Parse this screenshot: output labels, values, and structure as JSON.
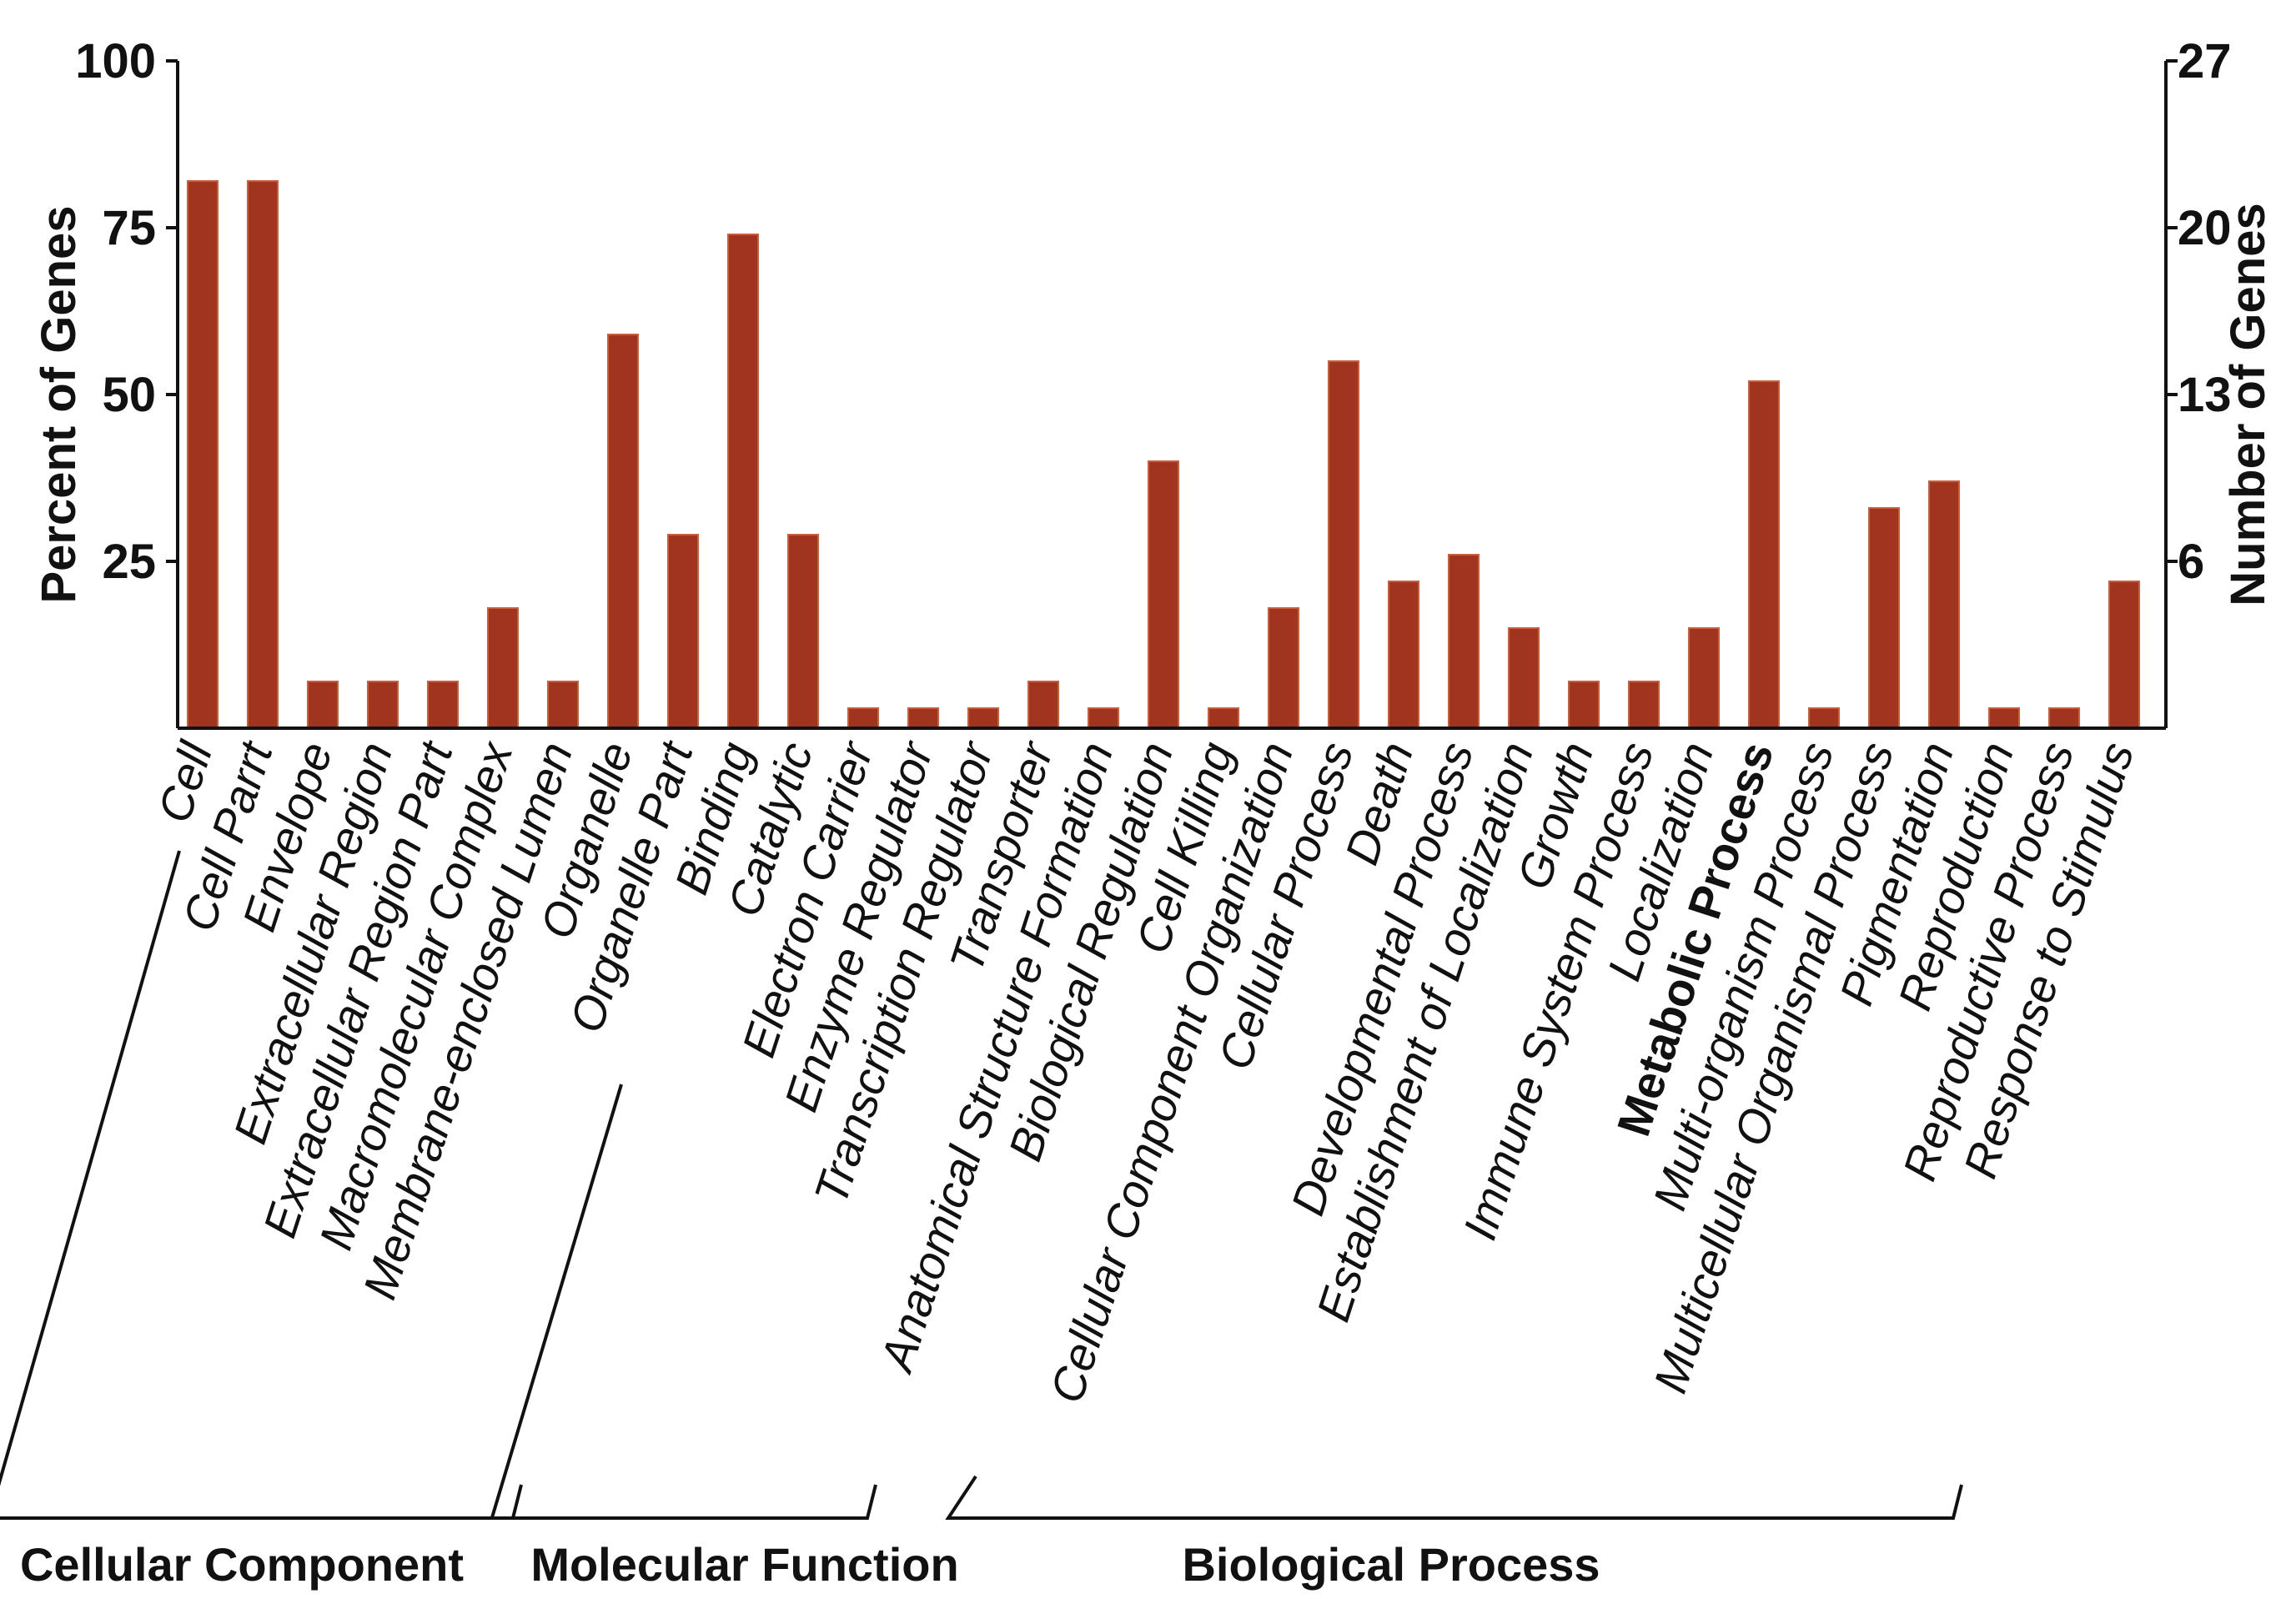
{
  "chart_data": {
    "type": "bar",
    "title": "",
    "ylabel": "Percent of Genes",
    "y2label": "Number of Genes",
    "ylim": [
      0,
      100
    ],
    "yticks": [
      "25",
      "50",
      "75",
      "100"
    ],
    "y2ticks": [
      "6",
      "13",
      "20",
      "27"
    ],
    "bar_color": "#a0341f",
    "categories": [
      "Cell",
      "Cell Parrt",
      "Envelope",
      "Extracellular Region",
      "Extracellular Region Part",
      "Macromolecular Complex",
      "Membrane-enclosed Lumen",
      "Organelle",
      "Organelle Part",
      "Binding",
      "Catalytic",
      "Electron Carrier",
      "Enzyme Regulator",
      "Transcription Regulator",
      "Transporter",
      "Anatomical Structure Formation",
      "Biological Regulation",
      "Cell Killing",
      "Cellular Component Organization",
      "Cellular Process",
      "Death",
      "Developmental Process",
      "Establishment of Localization",
      "Growth",
      "Immune System Process",
      "Localization",
      "Metabolic Process",
      "Multi-organism Process",
      "Multicellular Organismal Process",
      "Pigmentation",
      "Reproduction",
      "Reproductive Process",
      "Response to Stimulus"
    ],
    "values": [
      82,
      82,
      7,
      7,
      7,
      18,
      7,
      59,
      29,
      74,
      29,
      3,
      3,
      3,
      7,
      3,
      40,
      3,
      18,
      55,
      22,
      26,
      15,
      7,
      7,
      15,
      52,
      3,
      33,
      37,
      3,
      3,
      22
    ],
    "bold_category": "Metabolic Process",
    "groups": [
      {
        "name": "Cellular Component",
        "first": 0,
        "last": 8
      },
      {
        "name": "Molecular Function",
        "first": 9,
        "last": 14
      },
      {
        "name": "Biological Process",
        "first": 15,
        "last": 32
      }
    ]
  }
}
